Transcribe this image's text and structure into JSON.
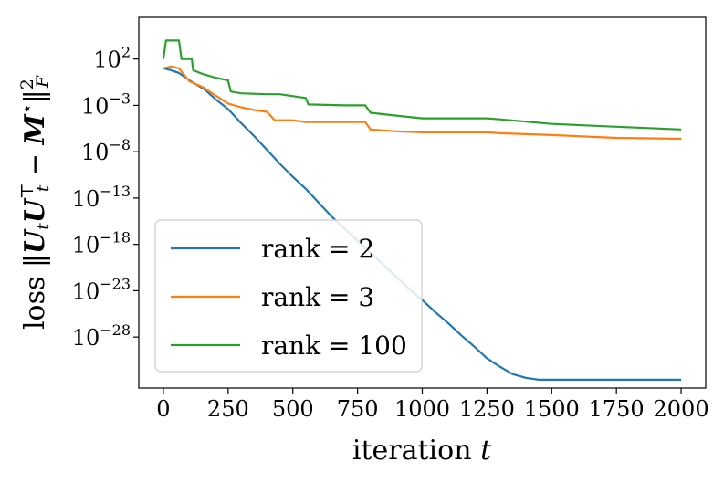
{
  "chart_data": {
    "type": "line",
    "xlabel": "iteration t",
    "ylabel": "loss ‖U_t U_t^⊤ − M^⋆‖_F^2",
    "y_scale": "log",
    "xlim": [
      -95,
      2095
    ],
    "ylim_log10": [
      -33.5,
      6.5
    ],
    "x_ticks": [
      0,
      250,
      500,
      750,
      1000,
      1250,
      1500,
      1750,
      2000
    ],
    "x_tick_labels": [
      "0",
      "250",
      "500",
      "750",
      "1000",
      "1250",
      "1500",
      "1750",
      "2000"
    ],
    "y_ticks_log10": [
      2,
      -3,
      -8,
      -13,
      -18,
      -23,
      -28
    ],
    "y_tick_labels": [
      "10^2",
      "10^-3",
      "10^-8",
      "10^-13",
      "10^-18",
      "10^-23",
      "10^-28"
    ],
    "legend_position": "lower-left",
    "grid": false,
    "series": [
      {
        "name": "rank = 2",
        "color": "#1f77b4",
        "x": [
          0,
          30,
          60,
          100,
          130,
          160,
          200,
          250,
          300,
          350,
          400,
          450,
          500,
          550,
          600,
          650,
          700,
          750,
          800,
          850,
          900,
          950,
          1000,
          1050,
          1100,
          1150,
          1200,
          1250,
          1300,
          1350,
          1400,
          1450,
          1500,
          1550,
          1600,
          1650,
          1700,
          1750,
          1800,
          1900,
          2000
        ],
        "y_log10": [
          1.0,
          0.8,
          0.5,
          -0.3,
          -0.8,
          -1.3,
          -2.3,
          -3.4,
          -4.9,
          -6.3,
          -7.8,
          -9.3,
          -10.7,
          -12.0,
          -13.5,
          -15.0,
          -16.3,
          -17.6,
          -18.9,
          -20.2,
          -21.5,
          -22.8,
          -24.0,
          -25.3,
          -26.5,
          -27.8,
          -29.0,
          -30.3,
          -31.2,
          -32.0,
          -32.4,
          -32.6,
          -32.6,
          -32.6,
          -32.6,
          -32.6,
          -32.6,
          -32.6,
          -32.6,
          -32.6,
          -32.6
        ]
      },
      {
        "name": "rank = 3",
        "color": "#ff7f0e",
        "x": [
          0,
          30,
          60,
          100,
          150,
          200,
          250,
          300,
          350,
          400,
          430,
          450,
          500,
          550,
          600,
          700,
          780,
          800,
          900,
          1000,
          1250,
          1300,
          1500,
          1750,
          2000
        ],
        "y_log10": [
          1.0,
          1.2,
          1.0,
          -0.4,
          -1.0,
          -1.9,
          -2.8,
          -3.2,
          -3.5,
          -3.7,
          -4.6,
          -4.6,
          -4.6,
          -4.8,
          -4.8,
          -4.8,
          -4.8,
          -5.6,
          -5.8,
          -5.9,
          -5.9,
          -6.0,
          -6.2,
          -6.5,
          -6.6
        ]
      },
      {
        "name": "rank = 100",
        "color": "#2ca02c",
        "x": [
          0,
          10,
          60,
          70,
          110,
          115,
          150,
          200,
          250,
          260,
          300,
          400,
          450,
          550,
          560,
          700,
          780,
          800,
          900,
          1000,
          1250,
          1300,
          1500,
          1750,
          2000
        ],
        "y_log10": [
          2.0,
          4.0,
          4.0,
          2.0,
          2.0,
          0.8,
          0.4,
          0.0,
          -0.3,
          -1.5,
          -1.7,
          -1.8,
          -1.8,
          -2.2,
          -2.9,
          -3.0,
          -3.0,
          -3.8,
          -4.1,
          -4.4,
          -4.4,
          -4.5,
          -5.0,
          -5.3,
          -5.6
        ]
      }
    ]
  }
}
